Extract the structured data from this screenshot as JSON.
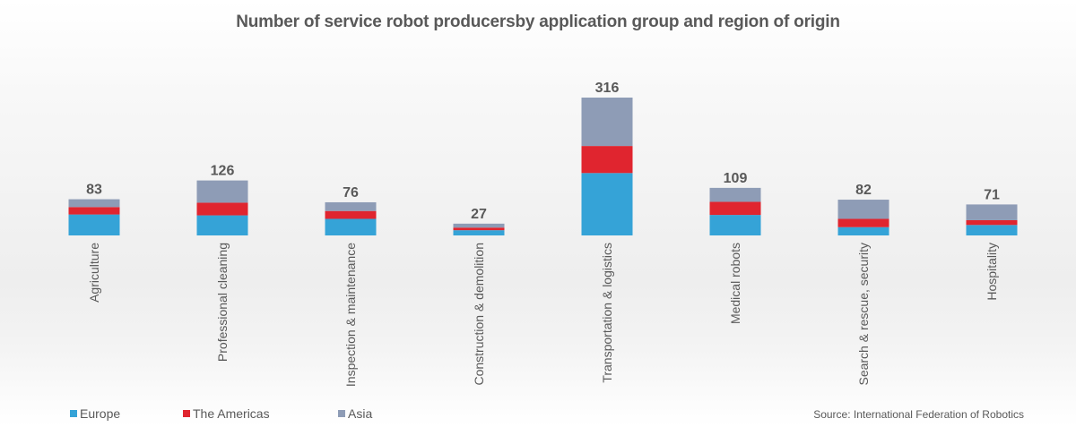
{
  "chart_data": {
    "type": "bar",
    "stacked": true,
    "title": "Number of service robot producersby application group and region of origin",
    "categories": [
      "Agriculture",
      "Professional cleaning",
      "Inspection & maintenance",
      "Construction & demolition",
      "Transportation & logistics",
      "Medical robots",
      "Search & rescue, security",
      "Hospitality"
    ],
    "series": [
      {
        "name": "Europe",
        "values": [
          48,
          46,
          38,
          12,
          143,
          47,
          19,
          24
        ]
      },
      {
        "name": "The Americas",
        "values": [
          17,
          29,
          18,
          6,
          62,
          30,
          19,
          11
        ]
      },
      {
        "name": "Asia",
        "values": [
          18,
          51,
          20,
          9,
          111,
          32,
          44,
          36
        ]
      }
    ],
    "totals": [
      83,
      126,
      76,
      27,
      316,
      109,
      82,
      71
    ],
    "ylim": [
      0,
      330
    ],
    "grid": false,
    "legend_position": "bottom-left",
    "colors": {
      "Europe": "#35A3D7",
      "The Americas": "#E0252F",
      "Asia": "#8E9CB6"
    }
  },
  "legend": [
    {
      "name": "Europe",
      "color": "#35A3D7"
    },
    {
      "name": "The Americas",
      "color": "#E0252F"
    },
    {
      "name": "Asia",
      "color": "#8E9CB6"
    }
  ],
  "source": "Source: International Federation of Robotics"
}
